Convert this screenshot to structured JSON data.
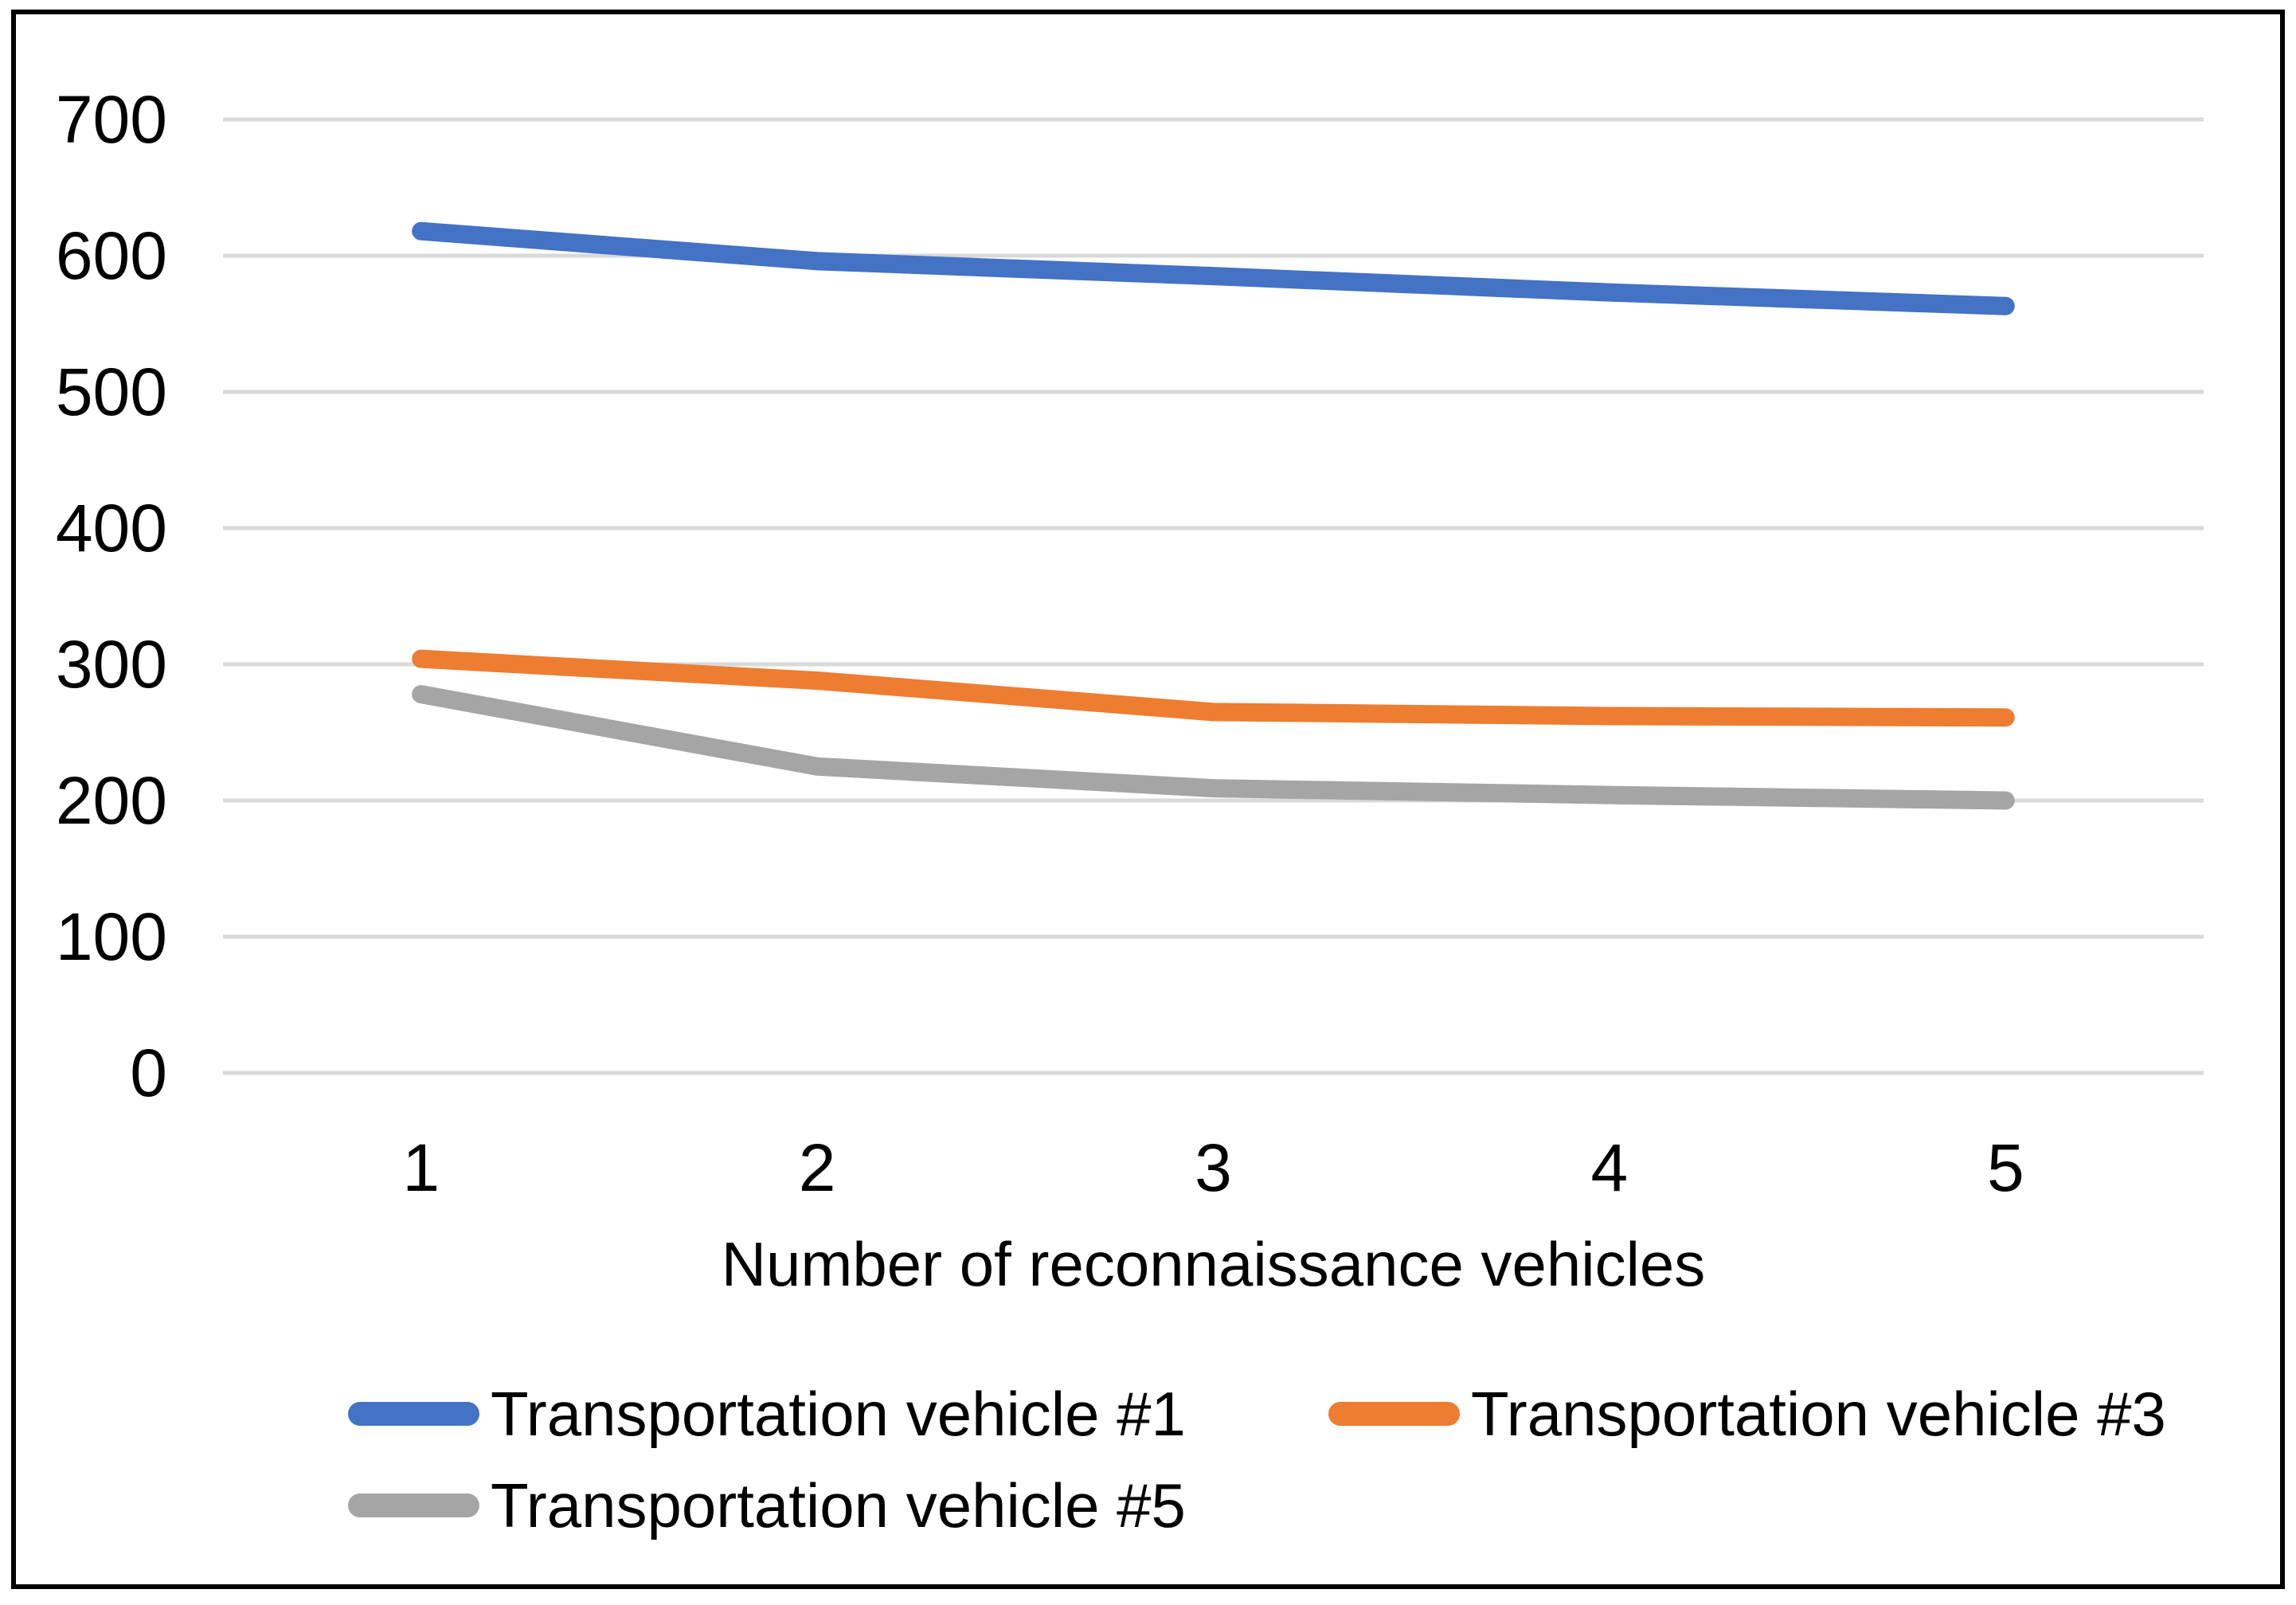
{
  "chart_data": {
    "type": "line",
    "categories": [
      "1",
      "2",
      "3",
      "4",
      "5"
    ],
    "series": [
      {
        "name": "Transportation vehicle #1",
        "color": "#4472C4",
        "values": [
          618,
          596,
          585,
          573,
          563
        ]
      },
      {
        "name": "Transportation vehicle #3",
        "color": "#ED7D31",
        "values": [
          304,
          288,
          265,
          262,
          261
        ]
      },
      {
        "name": "Transportation vehicle #5",
        "color": "#A5A5A5",
        "values": [
          278,
          225,
          209,
          204,
          200
        ]
      }
    ],
    "title": "",
    "xlabel": "Number of reconnaissance vehicles",
    "ylabel": "",
    "ylim": [
      0,
      700
    ],
    "yticks": [
      0,
      100,
      200,
      300,
      400,
      500,
      600,
      700
    ],
    "grid": "horizontal",
    "gridline_color": "#D9D9D9",
    "border_color": "#000000",
    "legend_position": "bottom"
  }
}
